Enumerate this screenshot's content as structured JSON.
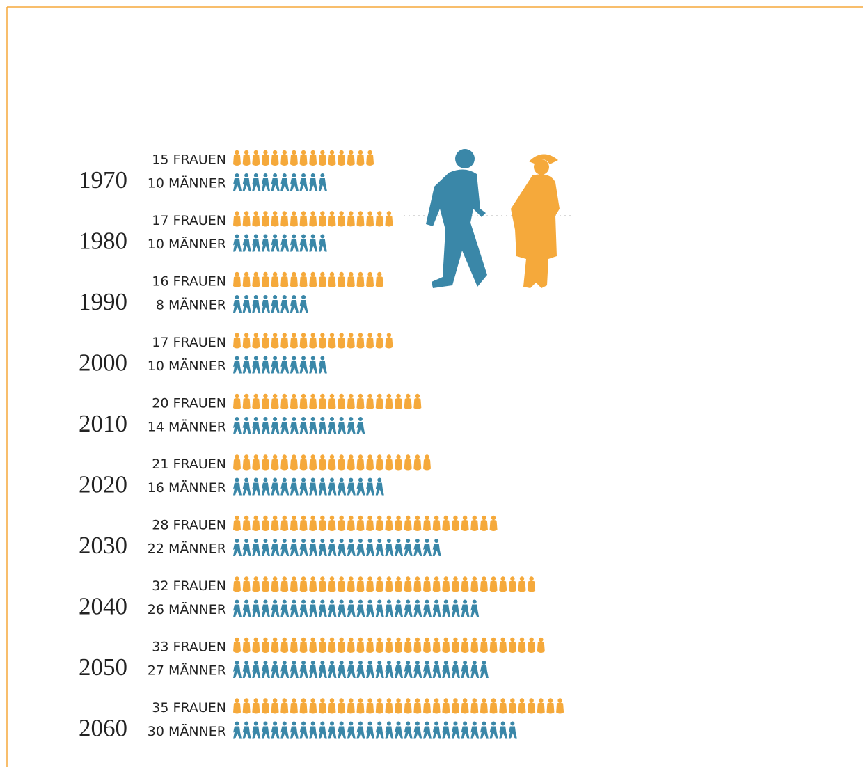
{
  "chart_data": {
    "type": "pictogram",
    "categories": [
      "1970",
      "1980",
      "1990",
      "2000",
      "2010",
      "2020",
      "2030",
      "2040",
      "2050",
      "2060"
    ],
    "series": [
      {
        "color": "#f5a93b",
        "values": [
          15,
          17,
          16,
          17,
          20,
          21,
          28,
          32,
          33,
          35
        ],
        "value_labels": [
          "15 FRAUEN",
          "17 FRAUEN",
          "16 FRAUEN",
          "17 FRAUEN",
          "20 FRAUEN",
          "21 FRAUEN",
          "28 FRAUEN",
          "32 FRAUEN",
          "33 FRAUEN",
          "35 FRAUEN"
        ]
      },
      {
        "color": "#3a87a8",
        "values": [
          10,
          10,
          8,
          10,
          14,
          16,
          22,
          26,
          27,
          30
        ],
        "value_labels": [
          "10 MÄNNER",
          "10 MÄNNER",
          "8 MÄNNER",
          "10 MÄNNER",
          "14 MÄNNER",
          "16 MÄNNER",
          "22 MÄNNER",
          "26 MÄNNER",
          "27 MÄNNER",
          "30 MÄNNER"
        ]
      }
    ]
  }
}
